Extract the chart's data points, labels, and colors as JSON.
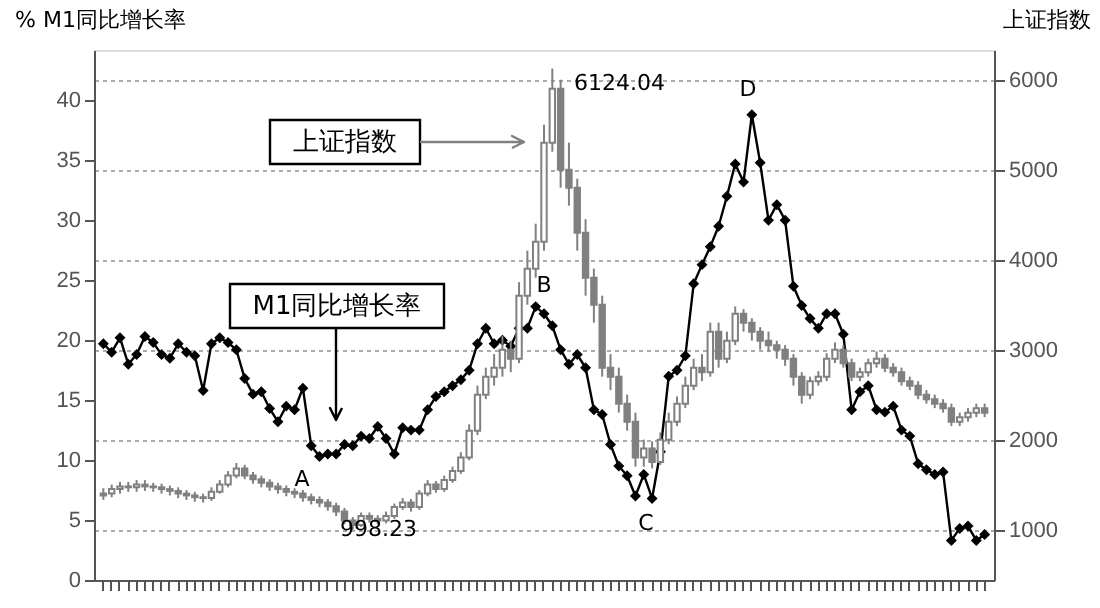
{
  "chart_data": {
    "type": "line",
    "ylabel": "% M1同比增长率",
    "y2label": "上证指数",
    "categories": [
      null,
      null,
      null,
      null,
      null,
      null,
      null,
      null,
      null,
      null,
      null,
      null,
      null,
      null,
      null,
      null,
      null,
      null,
      null,
      null,
      null,
      null,
      null,
      null,
      null,
      null,
      null,
      null,
      null,
      null,
      null,
      null,
      null,
      null,
      null,
      null,
      null,
      null,
      null,
      null,
      null,
      null,
      null,
      null,
      null,
      null,
      null,
      null,
      null,
      null,
      null,
      null,
      null,
      null,
      null,
      null,
      null,
      null,
      null,
      null,
      null,
      null,
      null,
      null,
      null,
      null,
      null,
      null,
      null,
      null,
      null,
      null,
      null,
      null,
      null,
      null,
      null,
      null,
      null,
      null,
      null,
      null,
      null,
      null,
      null,
      null,
      null,
      null,
      null,
      null,
      null,
      null,
      null,
      null,
      null,
      null,
      null,
      null,
      null,
      null,
      null,
      null,
      null,
      null,
      null,
      null,
      null
    ],
    "series": [
      {
        "name": "M1同比增长率",
        "color": "#000000",
        "marker": "diamond",
        "values": [
          19.7,
          19,
          20.2,
          18,
          18.8,
          20.3,
          19.8,
          18.8,
          18.5,
          19.7,
          19,
          18.7,
          15.8,
          19.7,
          20.2,
          19.8,
          19.2,
          16.8,
          15.5,
          15.7,
          14.3,
          13.2,
          14.5,
          14.2,
          16,
          11.2,
          10.3,
          10.5,
          10.5,
          11.3,
          11.2,
          12,
          11.8,
          12.8,
          11.8,
          10.5,
          12.7,
          12.5,
          12.5,
          14.2,
          15.3,
          15.7,
          16.2,
          16.7,
          17.5,
          19.7,
          21,
          19.7,
          20,
          19.5,
          21,
          21,
          22.8,
          22.2,
          21.2,
          19.2,
          18,
          18.8,
          17.7,
          14.2,
          13.8,
          11.3,
          9.5,
          8.7,
          7,
          8.8,
          6.8,
          10.7,
          17,
          17.5,
          18.7,
          24.7,
          26.3,
          27.8,
          29.5,
          32,
          34.7,
          33.2,
          38.8,
          34.8,
          30,
          31.3,
          30,
          24.5,
          22.9,
          21.8,
          21,
          22.2,
          22.2,
          20.5,
          14.2,
          15.7,
          16.2,
          14.2,
          14,
          14.5,
          12.5,
          12,
          9.7,
          9.2,
          8.8,
          9,
          3.3,
          4.3,
          4.5,
          3.3,
          3.8
        ]
      },
      {
        "name": "上证指数",
        "type": "candlestick",
        "color": "#808080",
        "axis": "y2",
        "ohlc": [
          [
            1380,
            1460,
            1330,
            1400
          ],
          [
            1400,
            1500,
            1360,
            1450
          ],
          [
            1450,
            1530,
            1400,
            1480
          ],
          [
            1480,
            1530,
            1420,
            1470
          ],
          [
            1470,
            1550,
            1420,
            1500
          ],
          [
            1500,
            1550,
            1430,
            1480
          ],
          [
            1480,
            1520,
            1420,
            1470
          ],
          [
            1470,
            1510,
            1400,
            1450
          ],
          [
            1450,
            1490,
            1380,
            1430
          ],
          [
            1430,
            1470,
            1350,
            1400
          ],
          [
            1400,
            1440,
            1330,
            1380
          ],
          [
            1380,
            1420,
            1310,
            1360
          ],
          [
            1360,
            1400,
            1300,
            1350
          ],
          [
            1350,
            1470,
            1320,
            1420
          ],
          [
            1420,
            1550,
            1400,
            1500
          ],
          [
            1500,
            1650,
            1470,
            1600
          ],
          [
            1600,
            1740,
            1570,
            1680
          ],
          [
            1680,
            1720,
            1560,
            1600
          ],
          [
            1600,
            1640,
            1510,
            1560
          ],
          [
            1560,
            1600,
            1470,
            1520
          ],
          [
            1520,
            1560,
            1430,
            1480
          ],
          [
            1480,
            1520,
            1400,
            1450
          ],
          [
            1450,
            1490,
            1370,
            1420
          ],
          [
            1420,
            1460,
            1350,
            1400
          ],
          [
            1400,
            1440,
            1310,
            1360
          ],
          [
            1360,
            1400,
            1280,
            1330
          ],
          [
            1330,
            1370,
            1250,
            1300
          ],
          [
            1300,
            1340,
            1210,
            1260
          ],
          [
            1260,
            1300,
            1150,
            1200
          ],
          [
            1200,
            1240,
            1060,
            1100
          ],
          [
            1100,
            1140,
            998.23,
            1050
          ],
          [
            1050,
            1190,
            1030,
            1150
          ],
          [
            1150,
            1190,
            1080,
            1120
          ],
          [
            1120,
            1160,
            1060,
            1100
          ],
          [
            1100,
            1200,
            1070,
            1150
          ],
          [
            1150,
            1290,
            1120,
            1250
          ],
          [
            1250,
            1350,
            1220,
            1300
          ],
          [
            1300,
            1340,
            1200,
            1250
          ],
          [
            1250,
            1440,
            1220,
            1400
          ],
          [
            1400,
            1550,
            1370,
            1500
          ],
          [
            1500,
            1540,
            1410,
            1450
          ],
          [
            1450,
            1600,
            1420,
            1550
          ],
          [
            1550,
            1700,
            1520,
            1650
          ],
          [
            1650,
            1860,
            1620,
            1800
          ],
          [
            1800,
            2170,
            1770,
            2100
          ],
          [
            2100,
            2600,
            2050,
            2500
          ],
          [
            2500,
            2800,
            2450,
            2700
          ],
          [
            2700,
            2950,
            2600,
            2800
          ],
          [
            2800,
            3150,
            2700,
            3000
          ],
          [
            3000,
            3100,
            2750,
            2900
          ],
          [
            2900,
            3750,
            2850,
            3600
          ],
          [
            3600,
            4100,
            3500,
            3900
          ],
          [
            3900,
            4400,
            3800,
            4200
          ],
          [
            4200,
            5500,
            4100,
            5300
          ],
          [
            5300,
            6124.04,
            5200,
            5900
          ],
          [
            5900,
            6000,
            4800,
            5000
          ],
          [
            5000,
            5300,
            4600,
            4800
          ],
          [
            4800,
            4900,
            4100,
            4300
          ],
          [
            4300,
            4450,
            3600,
            3800
          ],
          [
            3800,
            3900,
            3300,
            3500
          ],
          [
            3500,
            3600,
            2700,
            2800
          ],
          [
            2800,
            2950,
            2550,
            2700
          ],
          [
            2700,
            2800,
            2300,
            2400
          ],
          [
            2400,
            2500,
            2100,
            2200
          ],
          [
            2200,
            2300,
            1700,
            1800
          ],
          [
            1800,
            2000,
            1700,
            1900
          ],
          [
            1900,
            1980,
            1680,
            1750
          ],
          [
            1750,
            2080,
            1720,
            2000
          ],
          [
            2000,
            2300,
            1950,
            2200
          ],
          [
            2200,
            2480,
            2150,
            2400
          ],
          [
            2400,
            2700,
            2350,
            2600
          ],
          [
            2600,
            2900,
            2550,
            2800
          ],
          [
            2800,
            2950,
            2650,
            2750
          ],
          [
            2750,
            3300,
            2700,
            3200
          ],
          [
            3200,
            3300,
            2800,
            2900
          ],
          [
            2900,
            3200,
            2850,
            3100
          ],
          [
            3100,
            3480,
            3050,
            3400
          ],
          [
            3400,
            3450,
            3200,
            3300
          ],
          [
            3300,
            3350,
            3100,
            3200
          ],
          [
            3200,
            3250,
            3000,
            3100
          ],
          [
            3100,
            3200,
            2980,
            3050
          ],
          [
            3050,
            3100,
            2900,
            3000
          ],
          [
            3000,
            3050,
            2820,
            2900
          ],
          [
            2900,
            2950,
            2600,
            2700
          ],
          [
            2700,
            2750,
            2400,
            2500
          ],
          [
            2500,
            2700,
            2450,
            2650
          ],
          [
            2650,
            2760,
            2600,
            2700
          ],
          [
            2700,
            2960,
            2650,
            2900
          ],
          [
            2900,
            3080,
            2850,
            3000
          ],
          [
            3000,
            3050,
            2800,
            2850
          ],
          [
            2850,
            2900,
            2650,
            2700
          ],
          [
            2700,
            2800,
            2650,
            2750
          ],
          [
            2750,
            2900,
            2700,
            2850
          ],
          [
            2850,
            2980,
            2800,
            2900
          ],
          [
            2900,
            2950,
            2750,
            2800
          ],
          [
            2800,
            2850,
            2700,
            2750
          ],
          [
            2750,
            2800,
            2600,
            2650
          ],
          [
            2650,
            2700,
            2550,
            2600
          ],
          [
            2600,
            2650,
            2450,
            2500
          ],
          [
            2500,
            2550,
            2400,
            2450
          ],
          [
            2450,
            2500,
            2350,
            2400
          ],
          [
            2400,
            2450,
            2300,
            2350
          ],
          [
            2350,
            2400,
            2150,
            2200
          ],
          [
            2200,
            2300,
            2150,
            2250
          ],
          [
            2250,
            2350,
            2200,
            2300
          ],
          [
            2300,
            2400,
            2250,
            2350
          ],
          [
            2350,
            2400,
            2250,
            2300
          ]
        ]
      }
    ],
    "ylim": [
      0,
      44.2
    ],
    "yticks": [
      0,
      5,
      10,
      15,
      20,
      25,
      30,
      35,
      40
    ],
    "y2lim": [
      440,
      6330
    ],
    "y2ticks": [
      1000,
      2000,
      3000,
      4000,
      5000,
      6000
    ],
    "grid": "y2",
    "annotations": [
      "6124.04",
      "998.23",
      "A",
      "B",
      "C",
      "D"
    ]
  }
}
